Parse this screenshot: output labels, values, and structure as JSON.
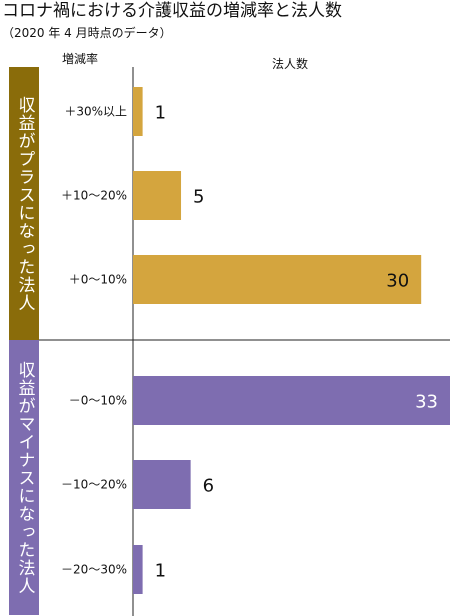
{
  "title": "コロナ禍における介護収益の増減率と法人数",
  "subtitle": "（2020 年 4 月時点のデータ）",
  "headers": {
    "rate": "増減率",
    "count": "法人数"
  },
  "colors": {
    "plus": "#d4a53e",
    "minus": "#7e6db0",
    "plus_band": "#8a6c0a",
    "minus_band": "#7e6db0",
    "axis": "#222222"
  },
  "groups": [
    {
      "label": "収益がプラスになった法人"
    },
    {
      "label": "収益がマイナスになった法人"
    }
  ],
  "chart_data": {
    "type": "bar",
    "orientation": "horizontal",
    "title": "コロナ禍における介護収益の増減率と法人数",
    "subtitle": "（2020 年 4 月時点のデータ）",
    "xlabel": "法人数",
    "ylabel": "増減率",
    "categories": [
      "＋30%以上",
      "＋10～20%",
      "＋0～10%",
      "－0～10%",
      "－10～20%",
      "－20～30%"
    ],
    "values": [
      1,
      5,
      30,
      33,
      6,
      1
    ],
    "groups": [
      "plus",
      "plus",
      "plus",
      "minus",
      "minus",
      "minus"
    ],
    "xlim": [
      0,
      33
    ],
    "grid": false,
    "legend": "none"
  }
}
